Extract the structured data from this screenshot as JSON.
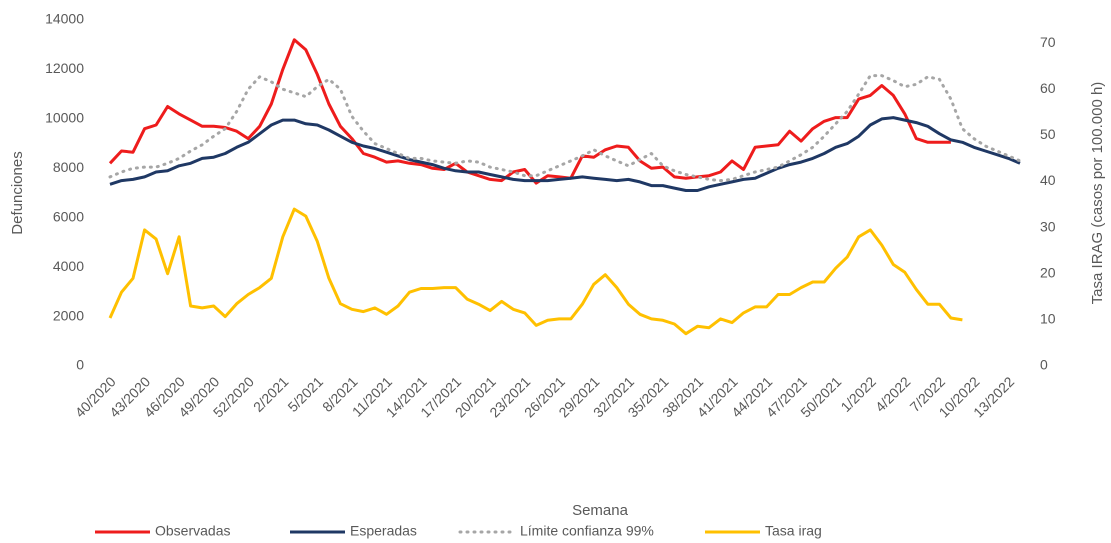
{
  "chart_data": {
    "type": "line",
    "x_label": "Semana",
    "y_label": "Defunciones",
    "y2_label": "Tasa IRAG (casos por 100.000 h)",
    "categories": [
      "40/2020",
      null,
      null,
      "43/2020",
      null,
      null,
      "46/2020",
      null,
      null,
      "49/2020",
      null,
      null,
      "52/2020",
      null,
      null,
      "2/2021",
      null,
      null,
      "5/2021",
      null,
      null,
      "8/2021",
      null,
      null,
      "11/2021",
      null,
      null,
      "14/2021",
      null,
      null,
      "17/2021",
      null,
      null,
      "20/2021",
      null,
      null,
      "23/2021",
      null,
      null,
      "26/2021",
      null,
      null,
      "29/2021",
      null,
      null,
      "32/2021",
      null,
      null,
      "35/2021",
      null,
      null,
      "38/2021",
      null,
      null,
      "41/2021",
      null,
      null,
      "44/2021",
      null,
      null,
      "47/2021",
      null,
      null,
      "50/2021",
      null,
      null,
      "1/2022",
      null,
      null,
      "4/2022",
      null,
      null,
      "7/2022",
      null,
      null,
      "10/2022",
      null,
      null,
      "13/2022",
      null
    ],
    "series": [
      {
        "name": "Observadas",
        "color": "#ee1c1c",
        "style": "solid",
        "values": [
          8200,
          8700,
          8650,
          9600,
          9750,
          10500,
          10200,
          9950,
          9700,
          9700,
          9650,
          9500,
          9200,
          9700,
          10600,
          12000,
          13200,
          12800,
          11800,
          10600,
          9700,
          9200,
          8600,
          8450,
          8250,
          8300,
          8200,
          8150,
          8000,
          7950,
          8200,
          7850,
          7700,
          7550,
          7500,
          7850,
          7950,
          7400,
          7700,
          7650,
          7600,
          8500,
          8450,
          8750,
          8900,
          8850,
          8300,
          8000,
          8050,
          7650,
          7600,
          7650,
          7700,
          7850,
          8300,
          7950,
          8850,
          8900,
          8950,
          9500,
          9100,
          9600,
          9900,
          10050,
          10050,
          10800,
          10950,
          11350,
          10950,
          10200,
          9200,
          9050,
          9050,
          9050,
          null,
          null,
          null,
          null,
          null,
          null
        ]
      },
      {
        "name": "Esperadas",
        "color": "#1f3864",
        "style": "solid",
        "values": [
          7350,
          7500,
          7550,
          7650,
          7850,
          7900,
          8100,
          8200,
          8400,
          8450,
          8600,
          8850,
          9050,
          9400,
          9750,
          9950,
          9950,
          9800,
          9750,
          9550,
          9300,
          9050,
          8900,
          8800,
          8650,
          8500,
          8350,
          8250,
          8150,
          8000,
          7900,
          7850,
          7850,
          7750,
          7650,
          7550,
          7500,
          7500,
          7500,
          7550,
          7600,
          7650,
          7600,
          7550,
          7500,
          7550,
          7450,
          7300,
          7300,
          7200,
          7100,
          7100,
          7250,
          7350,
          7450,
          7550,
          7600,
          7800,
          8000,
          8150,
          8250,
          8400,
          8600,
          8850,
          9000,
          9300,
          9750,
          10000,
          10050,
          9950,
          9850,
          9700,
          9400,
          9150,
          9050,
          8850,
          8700,
          8550,
          8400,
          8200
        ]
      },
      {
        "name": "Límite confianza 99%",
        "color": "#a6a6a6",
        "style": "dotted",
        "values": [
          7650,
          7850,
          8000,
          8050,
          8050,
          8200,
          8400,
          8700,
          8950,
          9300,
          9600,
          10300,
          11200,
          11700,
          11500,
          11200,
          11050,
          10900,
          11300,
          11600,
          11200,
          10100,
          9500,
          9000,
          8800,
          8600,
          8400,
          8400,
          8300,
          8250,
          8200,
          8300,
          8250,
          8050,
          7950,
          7850,
          7700,
          7700,
          7900,
          8100,
          8300,
          8500,
          8750,
          8500,
          8300,
          8100,
          8350,
          8600,
          8100,
          7900,
          7750,
          7650,
          7550,
          7500,
          7550,
          7700,
          7850,
          7950,
          8050,
          8300,
          8550,
          8850,
          9300,
          9800,
          10300,
          11000,
          11750,
          11750,
          11550,
          11300,
          11400,
          11700,
          11600,
          10800,
          9600,
          9200,
          8900,
          8700,
          8500,
          8300
        ]
      },
      {
        "name": "Tasa irag",
        "color": "#ffc000",
        "style": "solid",
        "axis": "y2",
        "values": [
          10.4,
          16,
          19,
          29.5,
          27.5,
          20,
          28,
          13,
          12.6,
          13,
          10.7,
          13.5,
          15.5,
          17,
          19,
          28,
          34,
          32.5,
          27,
          19,
          13.5,
          12.3,
          11.8,
          12.6,
          11.2,
          13,
          16,
          16.8,
          16.8,
          17,
          17,
          14.5,
          13.4,
          12,
          14,
          12.3,
          11.5,
          8.8,
          9.9,
          10.2,
          10.2,
          13.4,
          17.7,
          19.8,
          17,
          13.4,
          11.2,
          10.2,
          9.9,
          9.1,
          7,
          8.6,
          8.3,
          10.2,
          9.4,
          11.5,
          12.8,
          12.8,
          15.5,
          15.5,
          17,
          18.2,
          18.2,
          21.2,
          23.6,
          28,
          29.5,
          26.2,
          22,
          20.3,
          16.6,
          13.4,
          13.4,
          10.4,
          10,
          null,
          null,
          null,
          null,
          null
        ]
      }
    ],
    "ylim": [
      0,
      14000
    ],
    "yticks": [
      0,
      2000,
      4000,
      6000,
      8000,
      10000,
      12000,
      14000
    ],
    "y2lim": [
      0,
      75
    ],
    "y2ticks": [
      0,
      10,
      20,
      30,
      40,
      50,
      60,
      70
    ],
    "grid": false,
    "legend": "bottom"
  }
}
